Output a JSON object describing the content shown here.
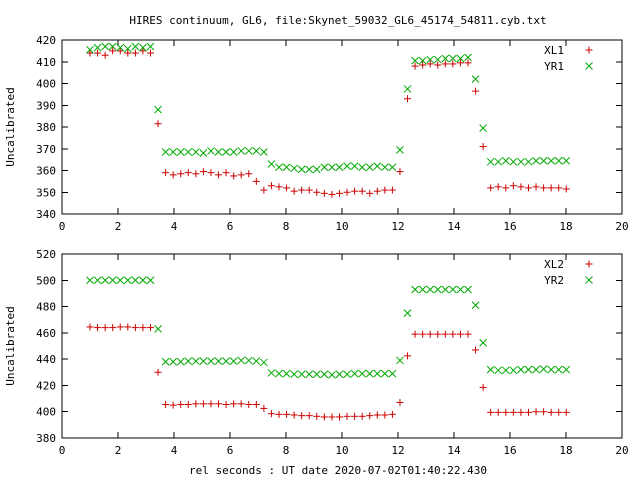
{
  "figure": {
    "title": "HIRES continuum, GL6, file:Skynet_59032_GL6_45174_54811.cyb.txt",
    "xlabel": "rel seconds : UT date 2020-07-02T01:40:22.430"
  },
  "chart_data": [
    {
      "type": "scatter",
      "ylabel": "Uncalibrated",
      "xlim": [
        0,
        20
      ],
      "ylim": [
        340,
        420
      ],
      "xticks": [
        0,
        2,
        4,
        6,
        8,
        10,
        12,
        14,
        16,
        18,
        20
      ],
      "yticks": [
        340,
        350,
        360,
        370,
        380,
        390,
        400,
        410,
        420
      ],
      "legend_position": "top-right",
      "grid": false,
      "x": [
        1.0,
        1.27,
        1.54,
        1.81,
        2.08,
        2.35,
        2.62,
        2.89,
        3.16,
        3.43,
        3.7,
        3.97,
        4.24,
        4.51,
        4.78,
        5.05,
        5.32,
        5.59,
        5.86,
        6.13,
        6.4,
        6.67,
        6.94,
        7.21,
        7.48,
        7.75,
        8.02,
        8.29,
        8.56,
        8.83,
        9.1,
        9.37,
        9.64,
        9.91,
        10.18,
        10.45,
        10.72,
        10.99,
        11.26,
        11.53,
        11.8,
        12.07,
        12.34,
        12.61,
        12.88,
        13.15,
        13.42,
        13.69,
        13.96,
        14.23,
        14.5,
        14.77,
        15.04,
        15.31,
        15.58,
        15.85,
        16.12,
        16.39,
        16.66,
        16.93,
        17.2,
        17.47,
        17.74,
        18.01
      ],
      "series": [
        {
          "name": "XL1",
          "color": "#cc0000",
          "marker": "+",
          "values": [
            414,
            414,
            413,
            415,
            415,
            414,
            414,
            415,
            414,
            381.5,
            359,
            358,
            358.5,
            359,
            358.5,
            359.5,
            359,
            358,
            359,
            357.5,
            358,
            358.5,
            355,
            351,
            353,
            352.5,
            352,
            350.5,
            351,
            351,
            350,
            349.5,
            349,
            349.5,
            350,
            350.5,
            350.5,
            349.5,
            350.5,
            351,
            351,
            359.5,
            393,
            408,
            408.5,
            409,
            408.5,
            409,
            409,
            409.5,
            409.5,
            396.5,
            371,
            352,
            352.5,
            352,
            353,
            352.5,
            352,
            352.5,
            352,
            352,
            352,
            351.5
          ]
        },
        {
          "name": "YR1",
          "color": "#00aa00",
          "marker": "x",
          "values": [
            415.5,
            416.5,
            417,
            417,
            416.5,
            416,
            417,
            416.5,
            417,
            388,
            368.5,
            368.5,
            368.5,
            368.5,
            368.5,
            368,
            369,
            368.5,
            368.5,
            368.5,
            369,
            369,
            369,
            368.5,
            363,
            361.5,
            361.5,
            361,
            360.5,
            360.5,
            360.5,
            361.5,
            361.5,
            361.5,
            362,
            362,
            361.5,
            361.5,
            362,
            361.5,
            361.5,
            369.5,
            397.5,
            410.5,
            410.5,
            411,
            411,
            411.5,
            411.5,
            411.5,
            412,
            402,
            379.5,
            364,
            364,
            364.5,
            364,
            364,
            364,
            364.5,
            364.5,
            364.5,
            364.5,
            364.5
          ]
        }
      ]
    },
    {
      "type": "scatter",
      "ylabel": "Uncalibrated",
      "xlim": [
        0,
        20
      ],
      "ylim": [
        380,
        520
      ],
      "xticks": [
        0,
        2,
        4,
        6,
        8,
        10,
        12,
        14,
        16,
        18,
        20
      ],
      "yticks": [
        380,
        400,
        420,
        440,
        460,
        480,
        500,
        520
      ],
      "legend_position": "top-right",
      "grid": false,
      "x": [
        1.0,
        1.27,
        1.54,
        1.81,
        2.08,
        2.35,
        2.62,
        2.89,
        3.16,
        3.43,
        3.7,
        3.97,
        4.24,
        4.51,
        4.78,
        5.05,
        5.32,
        5.59,
        5.86,
        6.13,
        6.4,
        6.67,
        6.94,
        7.21,
        7.48,
        7.75,
        8.02,
        8.29,
        8.56,
        8.83,
        9.1,
        9.37,
        9.64,
        9.91,
        10.18,
        10.45,
        10.72,
        10.99,
        11.26,
        11.53,
        11.8,
        12.07,
        12.34,
        12.61,
        12.88,
        13.15,
        13.42,
        13.69,
        13.96,
        14.23,
        14.5,
        14.77,
        15.04,
        15.31,
        15.58,
        15.85,
        16.12,
        16.39,
        16.66,
        16.93,
        17.2,
        17.47,
        17.74,
        18.01
      ],
      "series": [
        {
          "name": "XL2",
          "color": "#cc0000",
          "marker": "+",
          "values": [
            464.5,
            464,
            464,
            464,
            464.5,
            464.5,
            464,
            464,
            464,
            430,
            405.5,
            405,
            405.5,
            405.5,
            406,
            406,
            406,
            406,
            405.5,
            406,
            406,
            405.5,
            405.5,
            402.5,
            398.5,
            398,
            398,
            397.5,
            397,
            397,
            396.5,
            396,
            396,
            396,
            396.5,
            396.5,
            396.5,
            397,
            397.5,
            397.5,
            398,
            407,
            442.5,
            459,
            459,
            459,
            459,
            459,
            459,
            459,
            459,
            447,
            418.5,
            399.5,
            399.5,
            399.5,
            399.5,
            399.5,
            399.5,
            400,
            400,
            399.5,
            399.5,
            399.5
          ]
        },
        {
          "name": "YR2",
          "color": "#00aa00",
          "marker": "x",
          "values": [
            500,
            500,
            500,
            500,
            500,
            500,
            500,
            500,
            500,
            463,
            438,
            438,
            438,
            438.5,
            438.5,
            438.5,
            438.5,
            438.5,
            438.5,
            438.5,
            439,
            439,
            438.5,
            437.5,
            429.5,
            429,
            429,
            428.5,
            428.5,
            428.5,
            428.5,
            428.5,
            428,
            428.5,
            428.5,
            429,
            429,
            429,
            429,
            429,
            429,
            439,
            475,
            493,
            493,
            493,
            493,
            493,
            493,
            493,
            493,
            481,
            452.5,
            432,
            431.5,
            431.5,
            431.5,
            432,
            432,
            432,
            432.5,
            432,
            432,
            432
          ]
        }
      ]
    }
  ]
}
